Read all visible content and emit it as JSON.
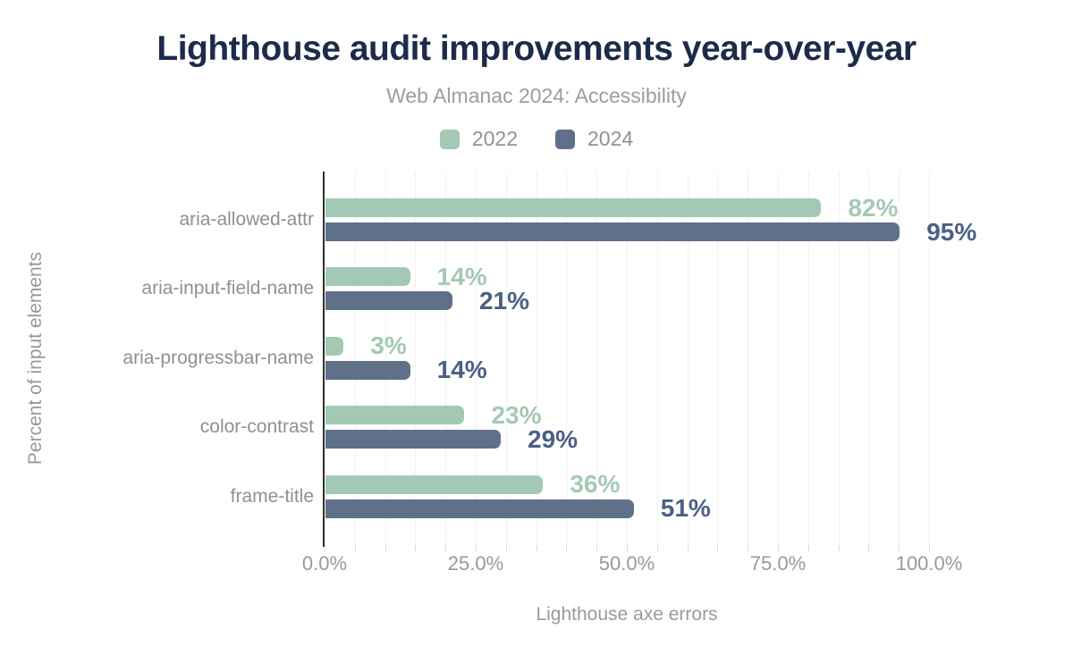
{
  "header": {
    "title": "Lighthouse audit improvements year-over-year",
    "subtitle": "Web Almanac 2024: Accessibility"
  },
  "chart_data": {
    "type": "bar",
    "orientation": "horizontal",
    "title": "Lighthouse audit improvements year-over-year",
    "subtitle": "Web Almanac 2024: Accessibility",
    "categories": [
      "aria-allowed-attr",
      "aria-input-field-name",
      "aria-progressbar-name",
      "color-contrast",
      "frame-title"
    ],
    "series": [
      {
        "name": "2022",
        "color": "#a3c9b5",
        "label_color": "#a3c9b5",
        "values": [
          82,
          14,
          3,
          23,
          36
        ]
      },
      {
        "name": "2024",
        "color": "#5e7189",
        "label_color": "#4b6183",
        "values": [
          95,
          21,
          14,
          29,
          51
        ]
      }
    ],
    "value_suffix": "%",
    "xlabel": "Lighthouse axe errors",
    "ylabel": "Percent of input elements",
    "xlim": [
      0,
      100
    ],
    "x_ticks": [
      {
        "value": 0,
        "label": "0.0%"
      },
      {
        "value": 25,
        "label": "25.0%"
      },
      {
        "value": 50,
        "label": "50.0%"
      },
      {
        "value": 75,
        "label": "75.0%"
      },
      {
        "value": 100,
        "label": "100.0%"
      }
    ],
    "grid": {
      "show": true,
      "interval_percent": 5
    },
    "legend_position": "top"
  }
}
